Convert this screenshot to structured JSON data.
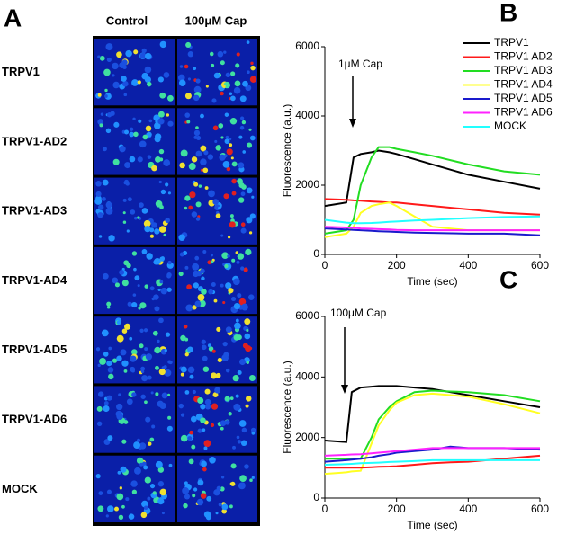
{
  "panel_a": {
    "label": "A",
    "columns": [
      "Control",
      "100μM Cap"
    ],
    "rows": [
      "TRPV1",
      "TRPV1-AD2",
      "TRPV1-AD3",
      "TRPV1-AD4",
      "TRPV1-AD5",
      "TRPV1-AD6",
      "MOCK"
    ]
  },
  "chart_data": [
    {
      "type": "line",
      "panel_label": "B",
      "annotation": "1μM Cap",
      "xlabel": "Time (sec)",
      "ylabel": "Fluorescence (a.u.)",
      "xlim": [
        0,
        600
      ],
      "xticks": [
        0,
        200,
        400,
        600
      ],
      "ylim": [
        0,
        6000
      ],
      "yticks": [
        0,
        2000,
        4000,
        6000
      ],
      "legend": "upper right",
      "x": [
        0,
        60,
        80,
        100,
        130,
        150,
        180,
        200,
        250,
        300,
        400,
        500,
        600
      ],
      "series": [
        {
          "name": "TRPV1",
          "color": "#000000",
          "values": [
            1400,
            1500,
            2800,
            2900,
            2950,
            3000,
            2950,
            2900,
            2750,
            2600,
            2300,
            2100,
            1900
          ]
        },
        {
          "name": "TRPV1 AD2",
          "color": "#ff1a1a",
          "values": [
            1600,
            1580,
            1560,
            1550,
            1530,
            1520,
            1500,
            1500,
            1450,
            1400,
            1300,
            1200,
            1150
          ]
        },
        {
          "name": "TRPV1 AD3",
          "color": "#22dd22",
          "values": [
            600,
            700,
            1000,
            2000,
            2800,
            3100,
            3100,
            3050,
            2950,
            2850,
            2600,
            2400,
            2300
          ]
        },
        {
          "name": "TRPV1 AD4",
          "color": "#ffff22",
          "values": [
            500,
            600,
            800,
            1200,
            1400,
            1450,
            1500,
            1400,
            1100,
            800,
            700,
            700,
            700
          ]
        },
        {
          "name": "TRPV1 AD5",
          "color": "#1a1acc",
          "values": [
            750,
            720,
            710,
            700,
            680,
            670,
            660,
            650,
            630,
            620,
            600,
            600,
            550
          ]
        },
        {
          "name": "TRPV1 AD6",
          "color": "#ff22ff",
          "values": [
            800,
            780,
            770,
            750,
            740,
            730,
            720,
            710,
            700,
            700,
            700,
            700,
            700
          ]
        },
        {
          "name": "MOCK",
          "color": "#22ffff",
          "values": [
            1000,
            920,
            900,
            900,
            910,
            920,
            940,
            950,
            980,
            1000,
            1050,
            1080,
            1100
          ]
        }
      ]
    },
    {
      "type": "line",
      "panel_label": "C",
      "annotation": "100μM Cap",
      "xlabel": "Time (sec)",
      "ylabel": "Fluorescence (a.u.)",
      "xlim": [
        0,
        600
      ],
      "xticks": [
        0,
        200,
        400,
        600
      ],
      "ylim": [
        0,
        6000
      ],
      "yticks": [
        0,
        2000,
        4000,
        6000
      ],
      "x": [
        0,
        60,
        75,
        100,
        130,
        150,
        180,
        200,
        250,
        300,
        350,
        400,
        500,
        600
      ],
      "series": [
        {
          "color": "#000000",
          "values": [
            1900,
            1850,
            3500,
            3650,
            3680,
            3700,
            3700,
            3700,
            3650,
            3600,
            3500,
            3400,
            3200,
            3000
          ]
        },
        {
          "color": "#22dd22",
          "values": [
            1300,
            1300,
            1300,
            1300,
            2000,
            2600,
            3000,
            3200,
            3500,
            3550,
            3520,
            3500,
            3400,
            3200
          ]
        },
        {
          "color": "#ffff22",
          "values": [
            800,
            850,
            880,
            900,
            1800,
            2400,
            2900,
            3150,
            3400,
            3450,
            3400,
            3350,
            3100,
            2800
          ]
        },
        {
          "color": "#ff1a1a",
          "values": [
            1000,
            1000,
            1000,
            1000,
            1020,
            1030,
            1040,
            1050,
            1100,
            1150,
            1180,
            1200,
            1300,
            1400
          ]
        },
        {
          "color": "#1a1acc",
          "values": [
            1200,
            1250,
            1270,
            1300,
            1350,
            1400,
            1450,
            1500,
            1550,
            1600,
            1700,
            1650,
            1650,
            1600
          ]
        },
        {
          "color": "#ff22ff",
          "values": [
            1400,
            1430,
            1440,
            1450,
            1480,
            1500,
            1530,
            1550,
            1600,
            1650,
            1650,
            1650,
            1650,
            1650
          ]
        },
        {
          "color": "#22ffff",
          "values": [
            1100,
            1120,
            1130,
            1150,
            1160,
            1170,
            1190,
            1200,
            1220,
            1250,
            1250,
            1250,
            1250,
            1250
          ]
        }
      ]
    }
  ]
}
